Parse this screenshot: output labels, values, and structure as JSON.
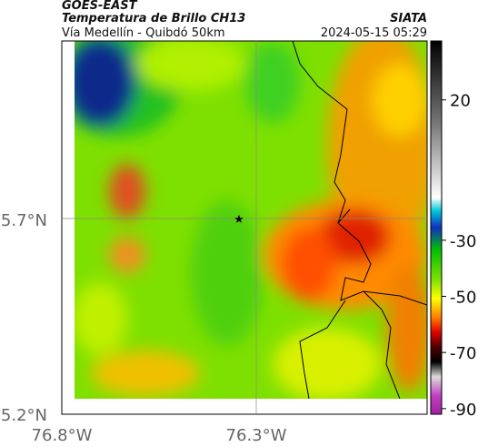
{
  "header": {
    "title": "GOES-EAST",
    "subtitle": "Temperatura de Brillo CH13",
    "source": "SIATA",
    "location": "Vía Medellín - Quibdó 50km",
    "datetime": "2024-05-15 05:29"
  },
  "map": {
    "lat_labels": [
      "5.7°N",
      "5.2°N"
    ],
    "lon_labels": [
      "76.8°W",
      "76.3°W"
    ]
  },
  "colorbar": {
    "range": [
      -92,
      41
    ],
    "ticks": [
      20,
      -30,
      -50,
      -70,
      -90
    ]
  }
}
